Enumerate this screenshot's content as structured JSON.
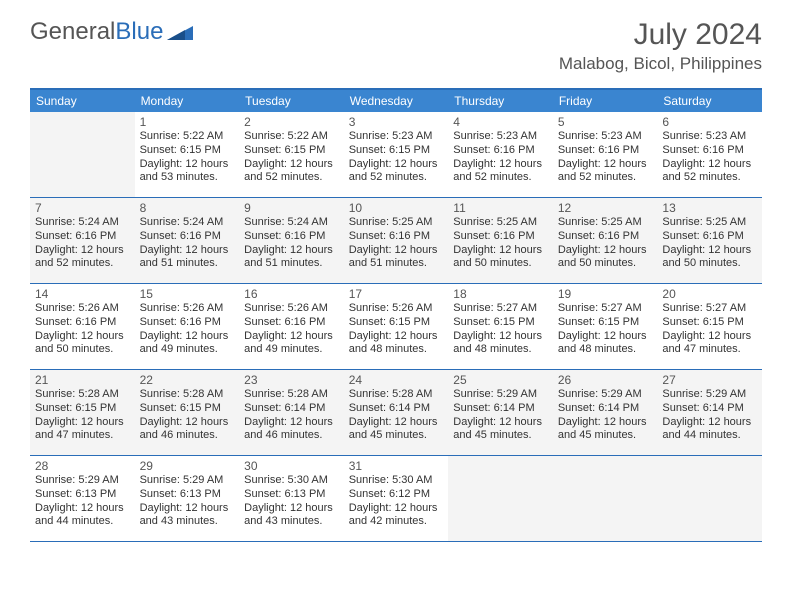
{
  "logo": {
    "text1": "General",
    "text2": "Blue"
  },
  "title": "July 2024",
  "location": "Malabog, Bicol, Philippines",
  "colors": {
    "header_bg": "#3a85d0",
    "border": "#2a6db8",
    "alt_bg": "#f4f4f4",
    "text": "#333333",
    "muted": "#555555"
  },
  "dayNames": [
    "Sunday",
    "Monday",
    "Tuesday",
    "Wednesday",
    "Thursday",
    "Friday",
    "Saturday"
  ],
  "weeks": [
    {
      "alt": false,
      "days": [
        {
          "empty": true
        },
        {
          "num": "1",
          "sunrise": "Sunrise: 5:22 AM",
          "sunset": "Sunset: 6:15 PM",
          "daylight": "Daylight: 12 hours and 53 minutes."
        },
        {
          "num": "2",
          "sunrise": "Sunrise: 5:22 AM",
          "sunset": "Sunset: 6:15 PM",
          "daylight": "Daylight: 12 hours and 52 minutes."
        },
        {
          "num": "3",
          "sunrise": "Sunrise: 5:23 AM",
          "sunset": "Sunset: 6:15 PM",
          "daylight": "Daylight: 12 hours and 52 minutes."
        },
        {
          "num": "4",
          "sunrise": "Sunrise: 5:23 AM",
          "sunset": "Sunset: 6:16 PM",
          "daylight": "Daylight: 12 hours and 52 minutes."
        },
        {
          "num": "5",
          "sunrise": "Sunrise: 5:23 AM",
          "sunset": "Sunset: 6:16 PM",
          "daylight": "Daylight: 12 hours and 52 minutes."
        },
        {
          "num": "6",
          "sunrise": "Sunrise: 5:23 AM",
          "sunset": "Sunset: 6:16 PM",
          "daylight": "Daylight: 12 hours and 52 minutes."
        }
      ]
    },
    {
      "alt": true,
      "days": [
        {
          "num": "7",
          "sunrise": "Sunrise: 5:24 AM",
          "sunset": "Sunset: 6:16 PM",
          "daylight": "Daylight: 12 hours and 52 minutes."
        },
        {
          "num": "8",
          "sunrise": "Sunrise: 5:24 AM",
          "sunset": "Sunset: 6:16 PM",
          "daylight": "Daylight: 12 hours and 51 minutes."
        },
        {
          "num": "9",
          "sunrise": "Sunrise: 5:24 AM",
          "sunset": "Sunset: 6:16 PM",
          "daylight": "Daylight: 12 hours and 51 minutes."
        },
        {
          "num": "10",
          "sunrise": "Sunrise: 5:25 AM",
          "sunset": "Sunset: 6:16 PM",
          "daylight": "Daylight: 12 hours and 51 minutes."
        },
        {
          "num": "11",
          "sunrise": "Sunrise: 5:25 AM",
          "sunset": "Sunset: 6:16 PM",
          "daylight": "Daylight: 12 hours and 50 minutes."
        },
        {
          "num": "12",
          "sunrise": "Sunrise: 5:25 AM",
          "sunset": "Sunset: 6:16 PM",
          "daylight": "Daylight: 12 hours and 50 minutes."
        },
        {
          "num": "13",
          "sunrise": "Sunrise: 5:25 AM",
          "sunset": "Sunset: 6:16 PM",
          "daylight": "Daylight: 12 hours and 50 minutes."
        }
      ]
    },
    {
      "alt": false,
      "days": [
        {
          "num": "14",
          "sunrise": "Sunrise: 5:26 AM",
          "sunset": "Sunset: 6:16 PM",
          "daylight": "Daylight: 12 hours and 50 minutes."
        },
        {
          "num": "15",
          "sunrise": "Sunrise: 5:26 AM",
          "sunset": "Sunset: 6:16 PM",
          "daylight": "Daylight: 12 hours and 49 minutes."
        },
        {
          "num": "16",
          "sunrise": "Sunrise: 5:26 AM",
          "sunset": "Sunset: 6:16 PM",
          "daylight": "Daylight: 12 hours and 49 minutes."
        },
        {
          "num": "17",
          "sunrise": "Sunrise: 5:26 AM",
          "sunset": "Sunset: 6:15 PM",
          "daylight": "Daylight: 12 hours and 48 minutes."
        },
        {
          "num": "18",
          "sunrise": "Sunrise: 5:27 AM",
          "sunset": "Sunset: 6:15 PM",
          "daylight": "Daylight: 12 hours and 48 minutes."
        },
        {
          "num": "19",
          "sunrise": "Sunrise: 5:27 AM",
          "sunset": "Sunset: 6:15 PM",
          "daylight": "Daylight: 12 hours and 48 minutes."
        },
        {
          "num": "20",
          "sunrise": "Sunrise: 5:27 AM",
          "sunset": "Sunset: 6:15 PM",
          "daylight": "Daylight: 12 hours and 47 minutes."
        }
      ]
    },
    {
      "alt": true,
      "days": [
        {
          "num": "21",
          "sunrise": "Sunrise: 5:28 AM",
          "sunset": "Sunset: 6:15 PM",
          "daylight": "Daylight: 12 hours and 47 minutes."
        },
        {
          "num": "22",
          "sunrise": "Sunrise: 5:28 AM",
          "sunset": "Sunset: 6:15 PM",
          "daylight": "Daylight: 12 hours and 46 minutes."
        },
        {
          "num": "23",
          "sunrise": "Sunrise: 5:28 AM",
          "sunset": "Sunset: 6:14 PM",
          "daylight": "Daylight: 12 hours and 46 minutes."
        },
        {
          "num": "24",
          "sunrise": "Sunrise: 5:28 AM",
          "sunset": "Sunset: 6:14 PM",
          "daylight": "Daylight: 12 hours and 45 minutes."
        },
        {
          "num": "25",
          "sunrise": "Sunrise: 5:29 AM",
          "sunset": "Sunset: 6:14 PM",
          "daylight": "Daylight: 12 hours and 45 minutes."
        },
        {
          "num": "26",
          "sunrise": "Sunrise: 5:29 AM",
          "sunset": "Sunset: 6:14 PM",
          "daylight": "Daylight: 12 hours and 45 minutes."
        },
        {
          "num": "27",
          "sunrise": "Sunrise: 5:29 AM",
          "sunset": "Sunset: 6:14 PM",
          "daylight": "Daylight: 12 hours and 44 minutes."
        }
      ]
    },
    {
      "alt": false,
      "days": [
        {
          "num": "28",
          "sunrise": "Sunrise: 5:29 AM",
          "sunset": "Sunset: 6:13 PM",
          "daylight": "Daylight: 12 hours and 44 minutes."
        },
        {
          "num": "29",
          "sunrise": "Sunrise: 5:29 AM",
          "sunset": "Sunset: 6:13 PM",
          "daylight": "Daylight: 12 hours and 43 minutes."
        },
        {
          "num": "30",
          "sunrise": "Sunrise: 5:30 AM",
          "sunset": "Sunset: 6:13 PM",
          "daylight": "Daylight: 12 hours and 43 minutes."
        },
        {
          "num": "31",
          "sunrise": "Sunrise: 5:30 AM",
          "sunset": "Sunset: 6:12 PM",
          "daylight": "Daylight: 12 hours and 42 minutes."
        },
        {
          "empty": true
        },
        {
          "empty": true
        },
        {
          "empty": true
        }
      ]
    }
  ]
}
